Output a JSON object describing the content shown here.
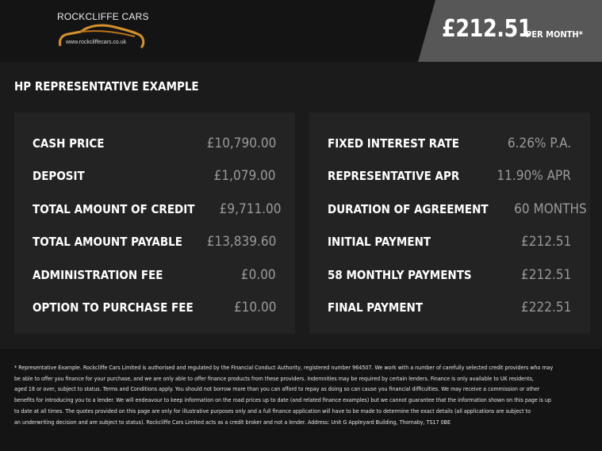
{
  "header": {
    "brand": "ROCKCLIFFE CARS",
    "url": "www.rockcliffecars.co.uk",
    "price": "£212.51",
    "per_month": "PER MONTH*",
    "accent_color": "#d4912e"
  },
  "title": "HP REPRESENTATIVE EXAMPLE",
  "left_rows": [
    {
      "label": "CASH PRICE",
      "value": "£10,790.00"
    },
    {
      "label": "DEPOSIT",
      "value": "£1,079.00"
    },
    {
      "label": "TOTAL AMOUNT OF CREDIT",
      "value": "£9,711.00"
    },
    {
      "label": "TOTAL AMOUNT PAYABLE",
      "value": "£13,839.60"
    },
    {
      "label": "ADMINISTRATION FEE",
      "value": "£0.00"
    },
    {
      "label": "OPTION TO PURCHASE FEE",
      "value": "£10.00"
    }
  ],
  "right_rows": [
    {
      "label": "FIXED INTEREST RATE",
      "value": "6.26% P.A."
    },
    {
      "label": "REPRESENTATIVE APR",
      "value": "11.90% APR"
    },
    {
      "label": "DURATION OF AGREEMENT",
      "value": "60 MONTHS"
    },
    {
      "label": "INITIAL PAYMENT",
      "value": "£212.51"
    },
    {
      "label": "58 MONTHLY PAYMENTS",
      "value": "£212.51"
    },
    {
      "label": "FINAL PAYMENT",
      "value": "£222.51"
    }
  ],
  "disclaimer": [
    "* Representative Example. Rockcliffe Cars Limited is authorised and regulated by the Financial Conduct Authority, registered number 964507. We work with a number of carefully selected credit providers who may",
    "be able to offer you finance for your purchase, and we are only able to offer finance products from these providers. Indemnities may be required by certain lenders. Finance is only available to UK residents,",
    "aged 18 or over, subject to status. Terms and Conditions apply. You should not borrow more than you can afford to repay as doing so can cause you financial difficulties. We may receive a commission or other",
    "benefits for introducing you to a lender. We will endeavour to keep information on the road prices up to date (and related finance examples) but we cannot guarantee that the information shown on this page is up",
    "to date at all times. The quotes provided on this page are only for illustrative purposes only and a full finance application will have to be made to determine the exact details (all applications are subject to",
    "an underwriting decision and are subject to status). Rockcliffe Cars Limited acts as a credit broker and not a lender. Address: Unit G Appleyard Building, Thornaby, TS17 0BE"
  ]
}
